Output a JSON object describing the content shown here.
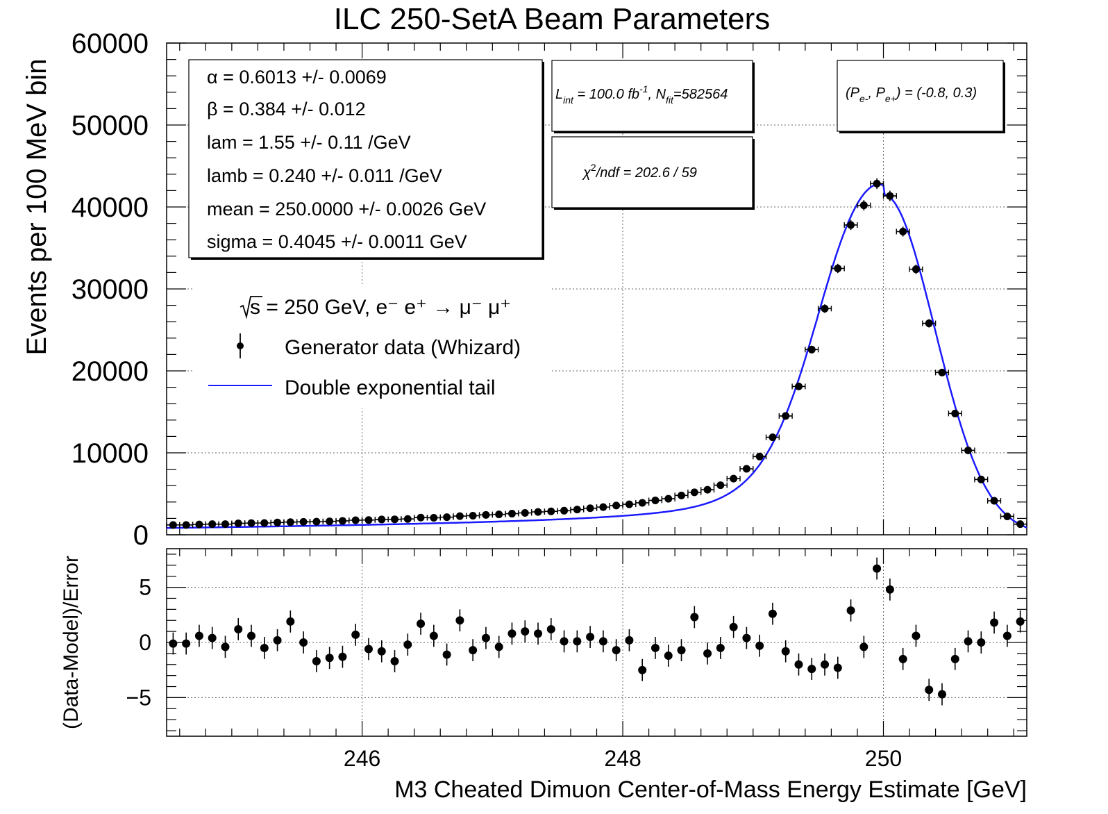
{
  "title": "ILC 250-SetA Beam Parameters",
  "fit_params": [
    {
      "sym": "α",
      "text": " =  0.6013 +/- 0.0069"
    },
    {
      "sym": "β",
      "text": " =  0.384 +/- 0.012"
    },
    {
      "sym": "",
      "text": "lam =  1.55 +/- 0.11 /GeV"
    },
    {
      "sym": "",
      "text": "lamb =  0.240 +/- 0.011 /GeV"
    },
    {
      "sym": "",
      "text": "mean =  250.0000 +/- 0.0026 GeV"
    },
    {
      "sym": "",
      "text": "sigma =  0.4045 +/- 0.0011 GeV"
    }
  ],
  "lumi": {
    "L": "L",
    "Lsub": "int",
    "Lval": " = 100.0 fb",
    "Lsup": "-1",
    "sep": ", N",
    "Nsub": "fit",
    "Nval": "=582564"
  },
  "chi2": {
    "chi": "χ",
    "sup": "2",
    "text": "/ndf =  202.6 /  59"
  },
  "pol": {
    "open": "(P",
    "sub1": "e-",
    "mid": ", P",
    "sub2": "e+",
    "close": ") = (-0.8, 0.3)"
  },
  "legend": {
    "header": "s = 250 GeV, e⁻ e⁺ → μ⁻ μ⁺",
    "data_label": "Generator data (Whizard)",
    "fit_label": "Double exponential tail"
  },
  "colors": {
    "fit": "#1a1aff",
    "data": "#000000",
    "grid": "#555555"
  },
  "chart_data": [
    {
      "type": "scatter",
      "name": "main",
      "ylabel": "Events per 100 MeV bin",
      "xlim": [
        244.5,
        251.1
      ],
      "ylim": [
        0,
        60000
      ],
      "yticks": [
        0,
        10000,
        20000,
        30000,
        40000,
        50000,
        60000
      ],
      "ytick_labels": [
        "0",
        "10000",
        "20000",
        "30000",
        "40000",
        "50000",
        "60000"
      ],
      "xticks": [
        246,
        248,
        250
      ],
      "grid": true,
      "series": [
        {
          "name": "Generator data (Whizard)",
          "x": [
            244.55,
            244.65,
            244.75,
            244.85,
            244.95,
            245.05,
            245.15,
            245.25,
            245.35,
            245.45,
            245.55,
            245.65,
            245.75,
            245.85,
            245.95,
            246.05,
            246.15,
            246.25,
            246.35,
            246.45,
            246.55,
            246.65,
            246.75,
            246.85,
            246.95,
            247.05,
            247.15,
            247.25,
            247.35,
            247.45,
            247.55,
            247.65,
            247.75,
            247.85,
            247.95,
            248.05,
            248.15,
            248.25,
            248.35,
            248.45,
            248.55,
            248.65,
            248.75,
            248.85,
            248.95,
            249.05,
            249.15,
            249.25,
            249.35,
            249.45,
            249.55,
            249.65,
            249.75,
            249.85,
            249.95,
            250.05,
            250.15,
            250.25,
            250.35,
            250.45,
            250.55,
            250.65,
            250.75,
            250.85,
            250.95,
            251.05
          ],
          "y": [
            1200,
            1200,
            1260,
            1300,
            1300,
            1400,
            1430,
            1440,
            1500,
            1550,
            1580,
            1600,
            1640,
            1700,
            1780,
            1800,
            1870,
            1890,
            1930,
            2100,
            2080,
            2150,
            2280,
            2330,
            2430,
            2490,
            2580,
            2670,
            2790,
            2860,
            2940,
            3080,
            3240,
            3380,
            3570,
            3720,
            3900,
            4200,
            4400,
            4800,
            5180,
            5500,
            6050,
            6850,
            8050,
            9550,
            11900,
            14500,
            18100,
            22600,
            27600,
            32500,
            37800,
            40200,
            42850,
            41350,
            37000,
            32400,
            25800,
            19800,
            14800,
            10300,
            6750,
            4150,
            2250,
            1300
          ],
          "yerr": [
            110,
            110,
            112,
            114,
            114,
            118,
            120,
            120,
            122,
            124,
            126,
            126,
            128,
            130,
            133,
            134,
            137,
            137,
            139,
            145,
            144,
            147,
            151,
            153,
            156,
            158,
            161,
            163,
            167,
            169,
            171,
            175,
            180,
            184,
            189,
            193,
            197,
            205,
            210,
            219,
            228,
            235,
            246,
            262,
            284,
            309,
            345,
            381,
            425,
            475,
            525,
            570,
            615,
            634,
            655,
            643,
            608,
            569,
            508,
            445,
            385,
            321,
            260,
            204,
            150,
            114
          ]
        }
      ],
      "fit": {
        "name": "Double exponential tail",
        "model": "double-exponential tail",
        "mean": 250.0,
        "sigma": 0.4045,
        "peak": 41500
      }
    },
    {
      "type": "scatter",
      "name": "residuals",
      "ylabel": "(Data-Model)/Error",
      "xlabel": "M3 Cheated Dimuon Center-of-Mass Energy Estimate [GeV]",
      "xlim": [
        244.5,
        251.1
      ],
      "ylim": [
        -8.5,
        8.5
      ],
      "yticks": [
        -5,
        0,
        5
      ],
      "ytick_labels": [
        "−5",
        "0",
        "5"
      ],
      "xticks": [
        246,
        248,
        250
      ],
      "xtick_labels": [
        "246",
        "248",
        "250"
      ],
      "grid": true,
      "series": [
        {
          "name": "pulls",
          "x": [
            244.55,
            244.65,
            244.75,
            244.85,
            244.95,
            245.05,
            245.15,
            245.25,
            245.35,
            245.45,
            245.55,
            245.65,
            245.75,
            245.85,
            245.95,
            246.05,
            246.15,
            246.25,
            246.35,
            246.45,
            246.55,
            246.65,
            246.75,
            246.85,
            246.95,
            247.05,
            247.15,
            247.25,
            247.35,
            247.45,
            247.55,
            247.65,
            247.75,
            247.85,
            247.95,
            248.05,
            248.15,
            248.25,
            248.35,
            248.45,
            248.55,
            248.65,
            248.75,
            248.85,
            248.95,
            249.05,
            249.15,
            249.25,
            249.35,
            249.45,
            249.55,
            249.65,
            249.75,
            249.85,
            249.95,
            250.05,
            250.15,
            250.25,
            250.35,
            250.45,
            250.55,
            250.65,
            250.75,
            250.85,
            250.95,
            251.05
          ],
          "y": [
            -0.1,
            -0.1,
            0.6,
            0.4,
            -0.4,
            1.2,
            0.6,
            -0.5,
            0.2,
            1.9,
            0.0,
            -1.7,
            -1.4,
            -1.3,
            0.7,
            -0.6,
            -0.8,
            -1.7,
            -0.2,
            1.7,
            0.6,
            -1.1,
            2.0,
            -0.7,
            0.4,
            -0.4,
            0.8,
            1.0,
            0.8,
            1.2,
            0.1,
            0.1,
            0.5,
            0.1,
            -0.7,
            0.2,
            -2.5,
            -0.5,
            -1.2,
            -0.7,
            2.3,
            -1.0,
            -0.5,
            1.4,
            0.4,
            -0.3,
            2.6,
            -0.8,
            -2.0,
            -2.4,
            -2.0,
            -2.3,
            2.9,
            -0.4,
            6.7,
            4.8,
            -1.5,
            0.6,
            -4.3,
            -4.7,
            -1.5,
            0.1,
            0.0,
            1.8,
            0.6,
            1.9
          ],
          "yerr": [
            1,
            1,
            1,
            1,
            1,
            1,
            1,
            1,
            1,
            1,
            1,
            1,
            1,
            1,
            1,
            1,
            1,
            1,
            1,
            1,
            1,
            1,
            1,
            1,
            1,
            1,
            1,
            1,
            1,
            1,
            1,
            1,
            1,
            1,
            1,
            1,
            1,
            1,
            1,
            1,
            1,
            1,
            1,
            1,
            1,
            1,
            1,
            1,
            1,
            1,
            1,
            1,
            1,
            1,
            1,
            1,
            1,
            1,
            1,
            1,
            1,
            1,
            1,
            1,
            1,
            1
          ]
        }
      ]
    }
  ]
}
